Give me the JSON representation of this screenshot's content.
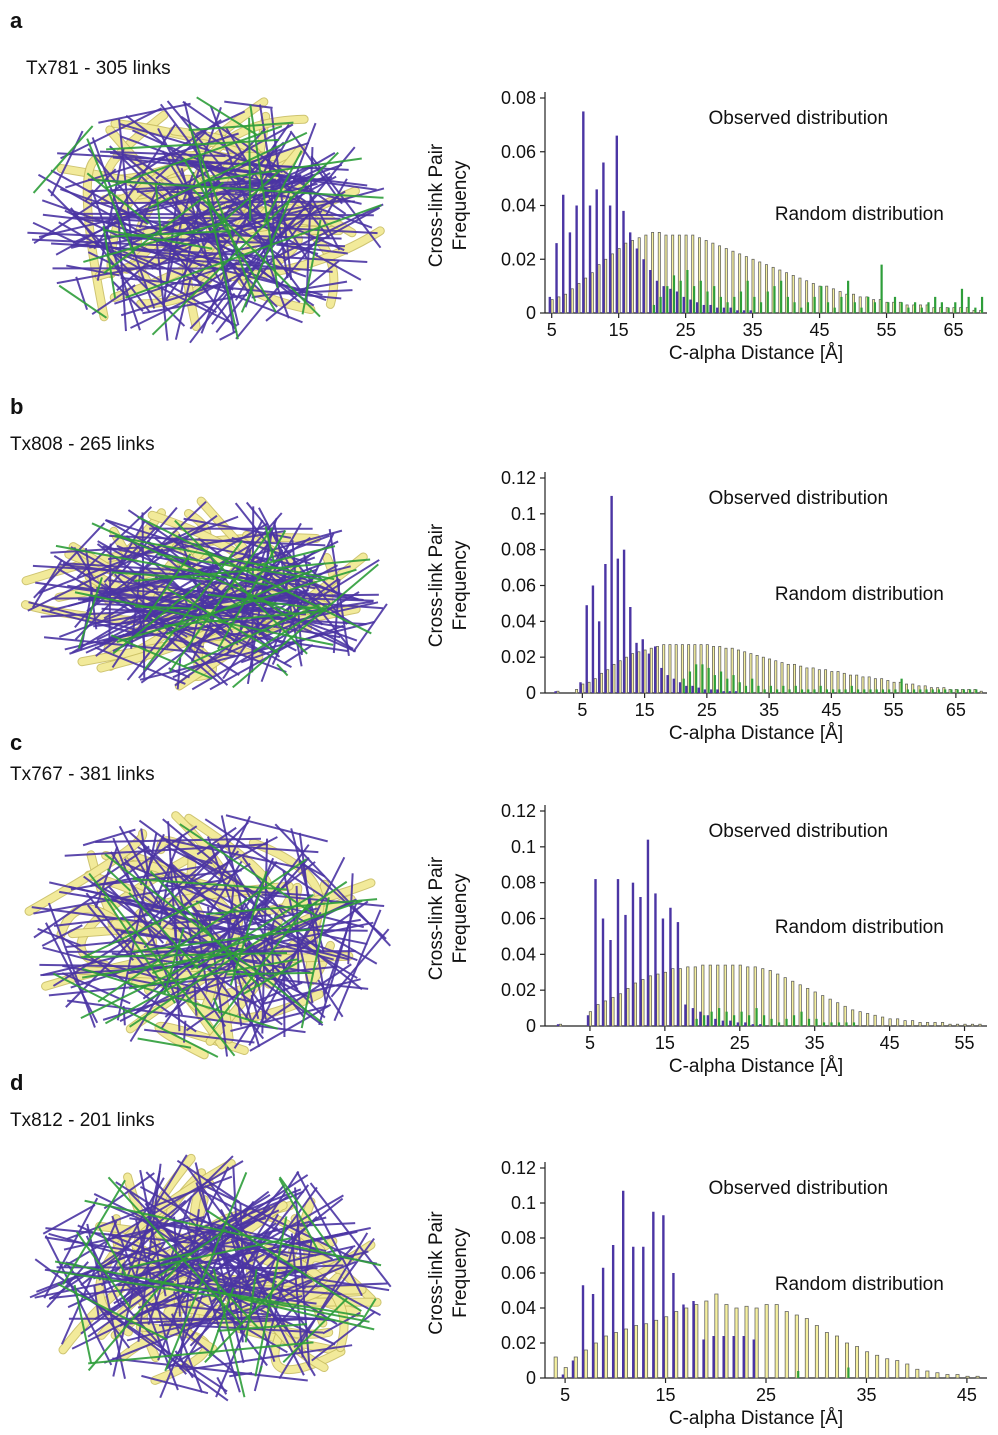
{
  "colors": {
    "observed": "#4b35a4",
    "random_fill": "#f5f0a0",
    "random_edge": "#555555",
    "long_range": "#2e9e3a",
    "ribbon": "#f2ea9a",
    "ribbon_edge": "#c9be62"
  },
  "panels": [
    {
      "letter": "a",
      "title": "Tx781 - 305 links",
      "chart_data": {
        "type": "bar",
        "ylabel_line1": "Cross-link Pair",
        "ylabel_line2": "Frequency",
        "xlabel": "C-alpha Distance [Å]",
        "yticks": [
          "0",
          "0.02",
          "0.04",
          "0.06",
          "0.08"
        ],
        "ymax": 0.08,
        "xticks": [
          "5",
          "15",
          "25",
          "35",
          "45",
          "55",
          "65"
        ],
        "xstart": 5,
        "xrange": [
          4,
          70
        ],
        "observed_label": "Observed distribution",
        "random_label": "Random distribution",
        "observed_x": [
          5,
          6,
          7,
          8,
          9,
          10,
          11,
          12,
          13,
          14,
          15,
          16,
          17,
          18,
          19,
          20,
          21,
          22,
          23,
          24,
          25,
          26,
          27,
          28,
          29,
          30,
          31,
          32,
          33,
          34,
          35,
          36,
          37,
          38,
          39,
          40,
          41,
          42,
          43,
          44,
          45,
          46,
          47,
          48,
          49,
          50,
          51,
          52,
          53,
          54,
          55,
          56,
          57,
          58,
          59,
          60,
          61,
          62,
          63,
          64,
          65,
          66,
          67,
          68,
          69
        ],
        "observed_values": [
          0.006,
          0.026,
          0.044,
          0.03,
          0.04,
          0.075,
          0.04,
          0.046,
          0.056,
          0.04,
          0.066,
          0.038,
          0.03,
          0.024,
          0.02,
          0.016,
          0.012,
          0.01,
          0.009,
          0.008,
          0.006,
          0.005,
          0.004,
          0.003,
          0.003,
          0.002,
          0.002,
          0.002,
          0.001,
          0.001,
          0.001,
          0,
          0,
          0,
          0,
          0,
          0,
          0,
          0,
          0,
          0,
          0,
          0,
          0,
          0,
          0,
          0,
          0,
          0,
          0,
          0,
          0,
          0,
          0,
          0,
          0,
          0,
          0,
          0,
          0,
          0,
          0,
          0,
          0,
          0
        ],
        "random_values": [
          0.005,
          0.006,
          0.007,
          0.009,
          0.011,
          0.013,
          0.015,
          0.018,
          0.02,
          0.022,
          0.024,
          0.026,
          0.027,
          0.028,
          0.029,
          0.03,
          0.03,
          0.029,
          0.029,
          0.029,
          0.029,
          0.029,
          0.028,
          0.027,
          0.026,
          0.025,
          0.024,
          0.023,
          0.022,
          0.021,
          0.02,
          0.019,
          0.018,
          0.017,
          0.016,
          0.015,
          0.014,
          0.013,
          0.012,
          0.011,
          0.01,
          0.01,
          0.009,
          0.008,
          0.007,
          0.007,
          0.006,
          0.006,
          0.005,
          0.005,
          0.004,
          0.004,
          0.004,
          0.003,
          0.003,
          0.003,
          0.003,
          0.002,
          0.002,
          0.002,
          0.002,
          0.002,
          0.002,
          0.001,
          0.001
        ],
        "long_values": [
          0,
          0,
          0,
          0,
          0,
          0,
          0,
          0,
          0,
          0,
          0,
          0,
          0,
          0,
          0,
          0.003,
          0.006,
          0.01,
          0.014,
          0.012,
          0.016,
          0.01,
          0.012,
          0.008,
          0.01,
          0.006,
          0.004,
          0.006,
          0.008,
          0.012,
          0.006,
          0.004,
          0.008,
          0.01,
          0.012,
          0.006,
          0.004,
          0.002,
          0.004,
          0.006,
          0.01,
          0.004,
          0.002,
          0.006,
          0.012,
          0.004,
          0.002,
          0.006,
          0.004,
          0.018,
          0.004,
          0.006,
          0.004,
          0.002,
          0.004,
          0.002,
          0.004,
          0.006,
          0.004,
          0.002,
          0.004,
          0.009,
          0.006,
          0.002,
          0.006
        ]
      }
    },
    {
      "letter": "b",
      "title": "Tx808 - 265 links",
      "chart_data": {
        "type": "bar",
        "ylabel_line1": "Cross-link Pair",
        "ylabel_line2": "Frequency",
        "xlabel": "C-alpha Distance [Å]",
        "yticks": [
          "0",
          "0.02",
          "0.04",
          "0.06",
          "0.08",
          "0.1",
          "0.12"
        ],
        "ymax": 0.12,
        "xticks": [
          "5",
          "15",
          "25",
          "35",
          "45",
          "55",
          "65"
        ],
        "xstart": 5,
        "xrange": [
          -1,
          70
        ],
        "observed_label": "Observed distribution",
        "random_label": "Random distribution",
        "observed_x": [
          1,
          2,
          3,
          4,
          5,
          6,
          7,
          8,
          9,
          10,
          11,
          12,
          13,
          14,
          15,
          16,
          17,
          18,
          19,
          20,
          21,
          22,
          23,
          24,
          25,
          26,
          27,
          28,
          29,
          30,
          31,
          32,
          33,
          34,
          35,
          36,
          37,
          38,
          39,
          40,
          41,
          42,
          43,
          44,
          45,
          46,
          47,
          48,
          49,
          50,
          51,
          52,
          53,
          54,
          55,
          56,
          57,
          58,
          59,
          60,
          61,
          62,
          63,
          64,
          65,
          66,
          67,
          68,
          69
        ],
        "observed_values": [
          0.001,
          0,
          0,
          0,
          0.006,
          0.049,
          0.06,
          0.04,
          0.072,
          0.11,
          0.075,
          0.08,
          0.048,
          0.028,
          0.03,
          0.022,
          0.026,
          0.014,
          0.01,
          0.008,
          0.006,
          0.004,
          0.004,
          0.003,
          0.002,
          0.002,
          0.002,
          0.001,
          0.001,
          0.001,
          0,
          0,
          0,
          0,
          0,
          0,
          0,
          0,
          0,
          0,
          0,
          0,
          0,
          0,
          0,
          0,
          0,
          0,
          0,
          0,
          0,
          0,
          0,
          0,
          0,
          0,
          0,
          0,
          0,
          0,
          0,
          0,
          0,
          0,
          0,
          0,
          0,
          0,
          0
        ],
        "random_values": [
          0.001,
          0,
          0,
          0.002,
          0.005,
          0.006,
          0.008,
          0.011,
          0.013,
          0.016,
          0.018,
          0.02,
          0.022,
          0.023,
          0.024,
          0.025,
          0.026,
          0.027,
          0.027,
          0.027,
          0.027,
          0.027,
          0.027,
          0.027,
          0.027,
          0.026,
          0.026,
          0.025,
          0.025,
          0.024,
          0.023,
          0.022,
          0.021,
          0.02,
          0.019,
          0.018,
          0.017,
          0.016,
          0.016,
          0.015,
          0.014,
          0.014,
          0.013,
          0.013,
          0.012,
          0.012,
          0.011,
          0.01,
          0.01,
          0.009,
          0.009,
          0.008,
          0.008,
          0.007,
          0.006,
          0.006,
          0.005,
          0.005,
          0.004,
          0.004,
          0.003,
          0.003,
          0.003,
          0.002,
          0.002,
          0.002,
          0.002,
          0.002,
          0.001
        ],
        "long_values": [
          0,
          0,
          0,
          0,
          0,
          0,
          0,
          0,
          0,
          0,
          0,
          0,
          0,
          0,
          0,
          0,
          0,
          0,
          0,
          0,
          0.008,
          0.012,
          0.016,
          0.016,
          0.014,
          0.01,
          0.012,
          0.008,
          0.01,
          0.006,
          0.004,
          0.008,
          0.004,
          0.002,
          0.004,
          0.002,
          0.004,
          0.002,
          0.004,
          0.002,
          0.002,
          0.002,
          0.004,
          0.002,
          0.002,
          0.002,
          0.002,
          0.004,
          0.002,
          0.002,
          0.002,
          0.002,
          0.002,
          0.002,
          0.002,
          0.008,
          0.002,
          0.002,
          0.002,
          0.002,
          0.002,
          0.002,
          0.002,
          0.002,
          0.002,
          0.002,
          0.002,
          0.002,
          0
        ]
      }
    },
    {
      "letter": "c",
      "title": "Tx767 - 381 links",
      "chart_data": {
        "type": "bar",
        "ylabel_line1": "Cross-link Pair",
        "ylabel_line2": "Frequency",
        "xlabel": "C-alpha Distance [Å]",
        "yticks": [
          "0",
          "0.02",
          "0.04",
          "0.06",
          "0.08",
          "0.1",
          "0.12"
        ],
        "ymax": 0.12,
        "xticks": [
          "5",
          "15",
          "25",
          "35",
          "45",
          "55"
        ],
        "xstart": 5,
        "xrange": [
          -1,
          58
        ],
        "observed_label": "Observed distribution",
        "random_label": "Random distribution",
        "observed_x": [
          1,
          2,
          3,
          4,
          5,
          6,
          7,
          8,
          9,
          10,
          11,
          12,
          13,
          14,
          15,
          16,
          17,
          18,
          19,
          20,
          21,
          22,
          23,
          24,
          25,
          26,
          27,
          28,
          29,
          30,
          31,
          32,
          33,
          34,
          35,
          36,
          37,
          38,
          39,
          40,
          41,
          42,
          43,
          44,
          45,
          46,
          47,
          48,
          49,
          50,
          51,
          52,
          53,
          54,
          55,
          56,
          57
        ],
        "observed_values": [
          0.001,
          0,
          0,
          0,
          0.006,
          0.082,
          0.06,
          0.048,
          0.082,
          0.062,
          0.08,
          0.072,
          0.104,
          0.074,
          0.06,
          0.066,
          0.058,
          0.012,
          0.01,
          0.008,
          0.006,
          0.004,
          0.003,
          0.003,
          0.002,
          0.002,
          0.001,
          0.001,
          0,
          0,
          0,
          0,
          0,
          0,
          0,
          0,
          0,
          0,
          0,
          0,
          0,
          0,
          0,
          0,
          0,
          0,
          0,
          0,
          0,
          0,
          0,
          0,
          0,
          0,
          0,
          0,
          0
        ],
        "random_values": [
          0.001,
          0,
          0,
          0,
          0.008,
          0.012,
          0.014,
          0.016,
          0.018,
          0.021,
          0.024,
          0.026,
          0.028,
          0.029,
          0.03,
          0.032,
          0.032,
          0.033,
          0.033,
          0.034,
          0.034,
          0.034,
          0.034,
          0.034,
          0.034,
          0.033,
          0.033,
          0.032,
          0.031,
          0.029,
          0.027,
          0.025,
          0.023,
          0.021,
          0.019,
          0.017,
          0.015,
          0.013,
          0.011,
          0.009,
          0.008,
          0.007,
          0.006,
          0.005,
          0.004,
          0.004,
          0.003,
          0.003,
          0.002,
          0.002,
          0.002,
          0.002,
          0.001,
          0.001,
          0.001,
          0.001,
          0.001
        ],
        "long_values": [
          0,
          0,
          0,
          0,
          0,
          0,
          0,
          0,
          0,
          0,
          0,
          0,
          0,
          0,
          0,
          0,
          0,
          0,
          0.004,
          0.006,
          0.008,
          0.01,
          0.008,
          0.006,
          0.008,
          0.006,
          0.01,
          0.006,
          0.004,
          0.002,
          0.004,
          0.006,
          0.008,
          0.004,
          0.004,
          0.002,
          0.002,
          0.002,
          0.002,
          0.002,
          0,
          0,
          0,
          0,
          0,
          0,
          0,
          0,
          0,
          0,
          0,
          0,
          0,
          0,
          0,
          0,
          0
        ]
      }
    },
    {
      "letter": "d",
      "title": "Tx812 - 201 links",
      "chart_data": {
        "type": "bar",
        "ylabel_line1": "Cross-link Pair",
        "ylabel_line2": "Frequency",
        "xlabel": "C-alpha Distance [Å]",
        "yticks": [
          "0",
          "0.02",
          "0.04",
          "0.06",
          "0.08",
          "0.1",
          "0.12"
        ],
        "ymax": 0.12,
        "xticks": [
          "5",
          "15",
          "25",
          "35",
          "45"
        ],
        "xstart": 5,
        "xrange": [
          3,
          47
        ],
        "observed_label": "Observed distribution",
        "random_label": "Random distribution",
        "observed_x": [
          4,
          5,
          6,
          7,
          8,
          9,
          10,
          11,
          12,
          13,
          14,
          15,
          16,
          17,
          18,
          19,
          20,
          21,
          22,
          23,
          24,
          25,
          26,
          27,
          28,
          29,
          30,
          31,
          32,
          33,
          34,
          35,
          36,
          37,
          38,
          39,
          40,
          41,
          42,
          43,
          44,
          45,
          46
        ],
        "observed_values": [
          0,
          0.002,
          0.01,
          0.053,
          0.048,
          0.063,
          0.076,
          0.107,
          0.075,
          0.075,
          0.095,
          0.093,
          0.06,
          0.042,
          0.044,
          0.022,
          0.024,
          0.024,
          0.024,
          0.024,
          0.022,
          0,
          0,
          0,
          0,
          0,
          0,
          0,
          0,
          0,
          0,
          0,
          0,
          0,
          0,
          0,
          0,
          0,
          0,
          0,
          0,
          0,
          0
        ],
        "random_values": [
          0.012,
          0.006,
          0.012,
          0.016,
          0.02,
          0.024,
          0.026,
          0.028,
          0.03,
          0.031,
          0.033,
          0.035,
          0.038,
          0.04,
          0.042,
          0.044,
          0.048,
          0.042,
          0.04,
          0.041,
          0.04,
          0.042,
          0.042,
          0.038,
          0.036,
          0.034,
          0.03,
          0.026,
          0.024,
          0.02,
          0.018,
          0.015,
          0.013,
          0.011,
          0.01,
          0.008,
          0.005,
          0.004,
          0.003,
          0.002,
          0.002,
          0.001,
          0.001
        ],
        "long_values": [
          0,
          0,
          0,
          0,
          0,
          0,
          0,
          0,
          0,
          0,
          0,
          0,
          0,
          0,
          0,
          0,
          0,
          0,
          0,
          0,
          0,
          0,
          0,
          0,
          0.004,
          0,
          0,
          0,
          0,
          0.006,
          0,
          0,
          0,
          0,
          0,
          0,
          0,
          0,
          0,
          0,
          0,
          0,
          0
        ]
      }
    }
  ]
}
